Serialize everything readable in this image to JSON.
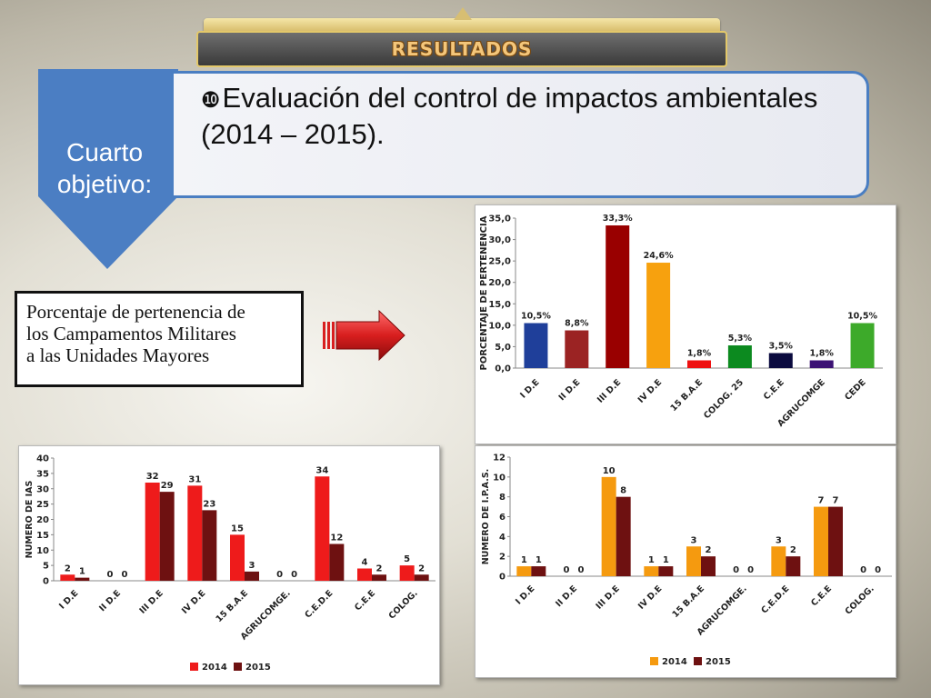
{
  "header": {
    "title": "RESULTADOS"
  },
  "objective": {
    "tag": [
      "Cuarto",
      "objetivo:"
    ],
    "bullet": "❿",
    "lines": [
      "Evaluación del control de impactos ambientales",
      "(2014 – 2015)."
    ]
  },
  "note": {
    "lines": [
      "Porcentaje de pertenencia de",
      "los Campamentos Militares",
      "a las Unidades Mayores"
    ]
  },
  "colors": {
    "chevron": "#4b7ec3",
    "red2014": "#ee1b1b",
    "darkred2015": "#6e1111",
    "orange2014": "#f59a0f"
  },
  "chart_data": [
    {
      "type": "bar",
      "ylabel": "PORCENTAJE DE PERTENENCIA",
      "ylim": [
        0,
        35
      ],
      "yticks": [
        "0,0",
        "5,0",
        "10,0",
        "15,0",
        "20,0",
        "25,0",
        "30,0",
        "35,0"
      ],
      "categories": [
        "I D.E",
        "II D.E",
        "III D.E",
        "IV D.E",
        "15 B.A.E",
        "COLOG. 25",
        "C.E.E",
        "AGRUCOMGE",
        "CEDE"
      ],
      "values": [
        10.5,
        8.8,
        33.3,
        24.6,
        1.8,
        5.3,
        3.5,
        1.8,
        10.5
      ],
      "value_labels": [
        "10,5%",
        "8,8%",
        "33,3%",
        "24,6%",
        "1,8%",
        "5,3%",
        "3,5%",
        "1,8%",
        "10,5%"
      ],
      "bar_colors": [
        "#1f3f9a",
        "#9b2323",
        "#990000",
        "#f7a10e",
        "#ee1111",
        "#0c8a1f",
        "#0a0a3e",
        "#3c1274",
        "#3daa2a"
      ],
      "grid": false
    },
    {
      "type": "bar",
      "ylabel": "NUMERO DE IAS",
      "ylim": [
        0,
        40
      ],
      "yticks": [
        "0",
        "5",
        "10",
        "15",
        "20",
        "25",
        "30",
        "35",
        "40"
      ],
      "categories": [
        "I D.E",
        "II D.E",
        "III D.E",
        "IV D.E",
        "15 B.A.E",
        "AGRUCOMGE.",
        "C.E.D.E",
        "C.E.E",
        "COLOG."
      ],
      "series": [
        {
          "name": "2014",
          "color": "#ee1b1b",
          "values": [
            2,
            0,
            32,
            31,
            15,
            0,
            34,
            4,
            5
          ]
        },
        {
          "name": "2015",
          "color": "#6e1111",
          "values": [
            1,
            0,
            29,
            23,
            3,
            0,
            12,
            2,
            2
          ]
        }
      ],
      "legend": "bottom",
      "grid": false
    },
    {
      "type": "bar",
      "ylabel": "NUMERO DE I.P.A.S.",
      "ylim": [
        0,
        12
      ],
      "yticks": [
        "0",
        "2",
        "4",
        "6",
        "8",
        "10",
        "12"
      ],
      "categories": [
        "I D.E",
        "II D.E",
        "III D.E",
        "IV D.E",
        "15 B.A.E",
        "AGRUCOMGE.",
        "C.E.D.E",
        "C.E.E",
        "COLOG."
      ],
      "series": [
        {
          "name": "2014",
          "color": "#f59a0f",
          "values": [
            1,
            0,
            10,
            1,
            3,
            0,
            3,
            7,
            0
          ]
        },
        {
          "name": "2015",
          "color": "#6e1111",
          "values": [
            1,
            0,
            8,
            1,
            2,
            0,
            2,
            7,
            0
          ]
        }
      ],
      "legend": "bottom",
      "grid": false
    }
  ]
}
